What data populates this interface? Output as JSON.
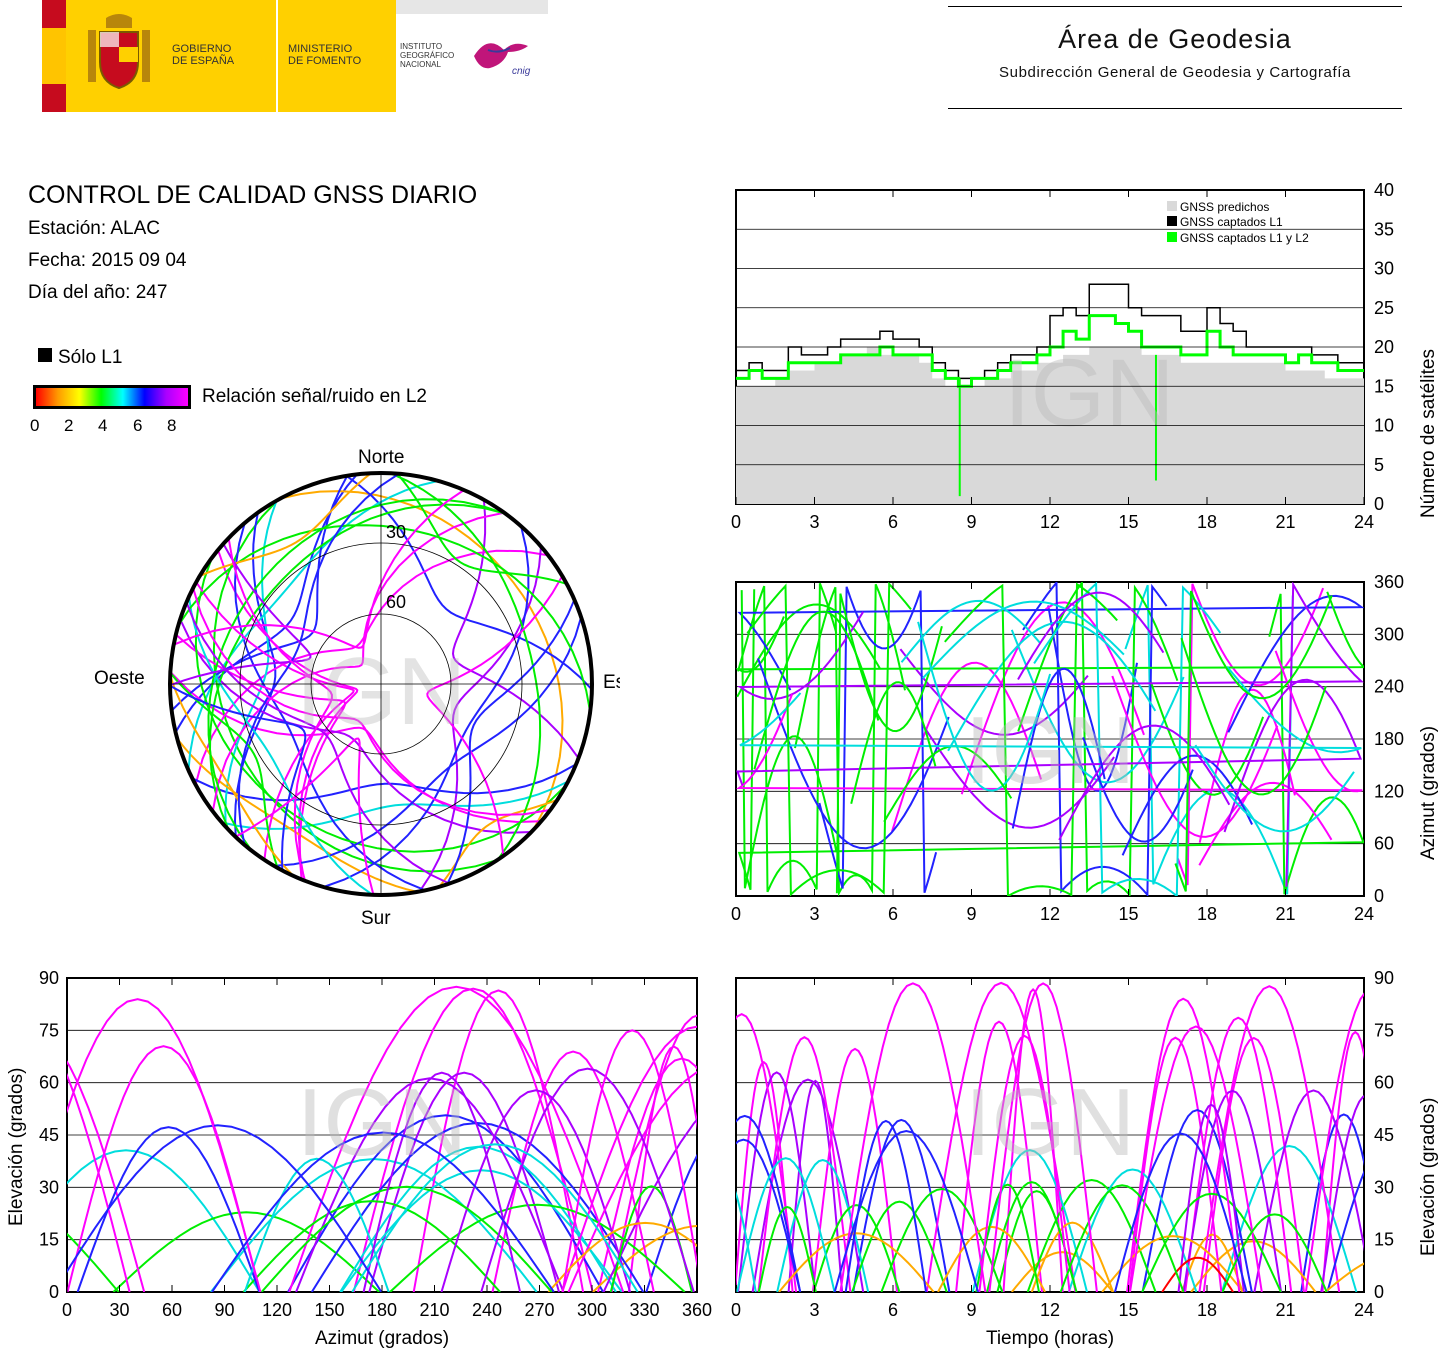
{
  "header": {
    "gobierno_label": "GOBIERNO\nDE ESPAÑA",
    "ministerio_label": "MINISTERIO\nDE FOMENTO",
    "instituto_label": "INSTITUTO\nGEOGRÁFICO\nNACIONAL",
    "cnig_label": "cnig",
    "area_title": "Área de Geodesia",
    "area_subtitle": "Subdirección General de Geodesia y Cartografía"
  },
  "info": {
    "title": "CONTROL DE CALIDAD GNSS DIARIO",
    "station": "Estación: ALAC",
    "date": "Fecha: 2015 09 04",
    "doy": "Día del año: 247"
  },
  "legend": {
    "l1_only": "Sólo L1",
    "snr_label": "Relación señal/ruido en L2",
    "snr_ticks": [
      "0",
      "2",
      "4",
      "6",
      "8"
    ],
    "snr_colors": [
      "#ff0000",
      "#ffaa00",
      "#00ee00",
      "#00dddd",
      "#2222ff",
      "#aa00ff",
      "#ff00ff"
    ]
  },
  "watermark": "IGN",
  "chart_data": [
    {
      "type": "polar",
      "name": "skyplot",
      "labels": {
        "north": "Norte",
        "south": "Sur",
        "east": "Este",
        "west": "Oeste"
      },
      "elevation_rings": [
        "30",
        "60"
      ]
    },
    {
      "type": "area",
      "name": "satellites-vs-time",
      "ylabel": "Número de satélites",
      "xlim": [
        0,
        24
      ],
      "ylim": [
        0,
        40
      ],
      "xticks": [
        "0",
        "3",
        "6",
        "9",
        "12",
        "15",
        "18",
        "21",
        "24"
      ],
      "yticks": [
        "0",
        "5",
        "10",
        "15",
        "20",
        "25",
        "30",
        "35",
        "40"
      ],
      "legend": [
        "GNSS predichos",
        "GNSS captados L1",
        "GNSS captados L1 y L2"
      ],
      "series_colors": [
        "#d9d9d9",
        "#000000",
        "#00ff00"
      ],
      "x": [
        0,
        0.5,
        1,
        1.5,
        2,
        2.5,
        3,
        3.5,
        4,
        4.5,
        5,
        5.5,
        6,
        6.5,
        7,
        7.5,
        8,
        8.5,
        9,
        9.5,
        10,
        10.5,
        11,
        11.5,
        12,
        12.5,
        13,
        13.5,
        14,
        14.5,
        15,
        15.5,
        16,
        16.5,
        17,
        17.5,
        18,
        18.5,
        19,
        19.5,
        20,
        20.5,
        21,
        21.5,
        22,
        22.5,
        23,
        23.5,
        24
      ],
      "predicted": [
        15,
        15,
        15,
        16,
        17,
        17,
        18,
        18,
        19,
        19,
        20,
        19,
        19,
        19,
        18,
        16,
        15,
        15,
        15,
        16,
        16,
        17,
        17,
        18,
        18,
        19,
        19,
        20,
        20,
        20,
        20,
        19,
        19,
        19,
        18,
        18,
        18,
        18,
        18,
        18,
        18,
        18,
        17,
        17,
        17,
        16,
        16,
        16,
        16
      ],
      "captured_l1": [
        17,
        18,
        17,
        17,
        20,
        19,
        19,
        20,
        21,
        21,
        21,
        22,
        21,
        21,
        20,
        18,
        17,
        16,
        16,
        17,
        18,
        19,
        19,
        20,
        24,
        25,
        24,
        28,
        28,
        28,
        25,
        24,
        24,
        24,
        22,
        22,
        25,
        23,
        22,
        20,
        20,
        20,
        20,
        20,
        19,
        19,
        18,
        18,
        17
      ],
      "captured_l1_l2": [
        16,
        17,
        16,
        16,
        18,
        18,
        18,
        18,
        19,
        19,
        19,
        20,
        19,
        19,
        19,
        17,
        16,
        15,
        16,
        16,
        17,
        18,
        18,
        19,
        20,
        22,
        21,
        24,
        24,
        23,
        22,
        20,
        20,
        20,
        19,
        19,
        22,
        20,
        19,
        19,
        19,
        19,
        18,
        19,
        18,
        18,
        17,
        17,
        17
      ]
    },
    {
      "type": "scatter",
      "name": "azimuth-vs-time",
      "ylabel": "Azimut (grados)",
      "xlim": [
        0,
        24
      ],
      "ylim": [
        0,
        360
      ],
      "xticks": [
        "0",
        "3",
        "6",
        "9",
        "12",
        "15",
        "18",
        "21",
        "24"
      ],
      "yticks": [
        "0",
        "60",
        "120",
        "180",
        "240",
        "300",
        "360"
      ]
    },
    {
      "type": "scatter",
      "name": "elevation-vs-azimuth",
      "xlabel": "Azimut (grados)",
      "ylabel": "Elevación (grados)",
      "xlim": [
        0,
        360
      ],
      "ylim": [
        0,
        90
      ],
      "xticks": [
        "0",
        "30",
        "60",
        "90",
        "120",
        "150",
        "180",
        "210",
        "240",
        "270",
        "300",
        "330",
        "360"
      ],
      "yticks": [
        "0",
        "15",
        "30",
        "45",
        "60",
        "75",
        "90"
      ]
    },
    {
      "type": "scatter",
      "name": "elevation-vs-time",
      "xlabel": "Tiempo (horas)",
      "ylabel": "Elevación (grados)",
      "xlim": [
        0,
        24
      ],
      "ylim": [
        0,
        90
      ],
      "xticks": [
        "0",
        "3",
        "6",
        "9",
        "12",
        "15",
        "18",
        "21",
        "24"
      ],
      "yticks": [
        "0",
        "15",
        "30",
        "45",
        "60",
        "75",
        "90"
      ]
    }
  ]
}
